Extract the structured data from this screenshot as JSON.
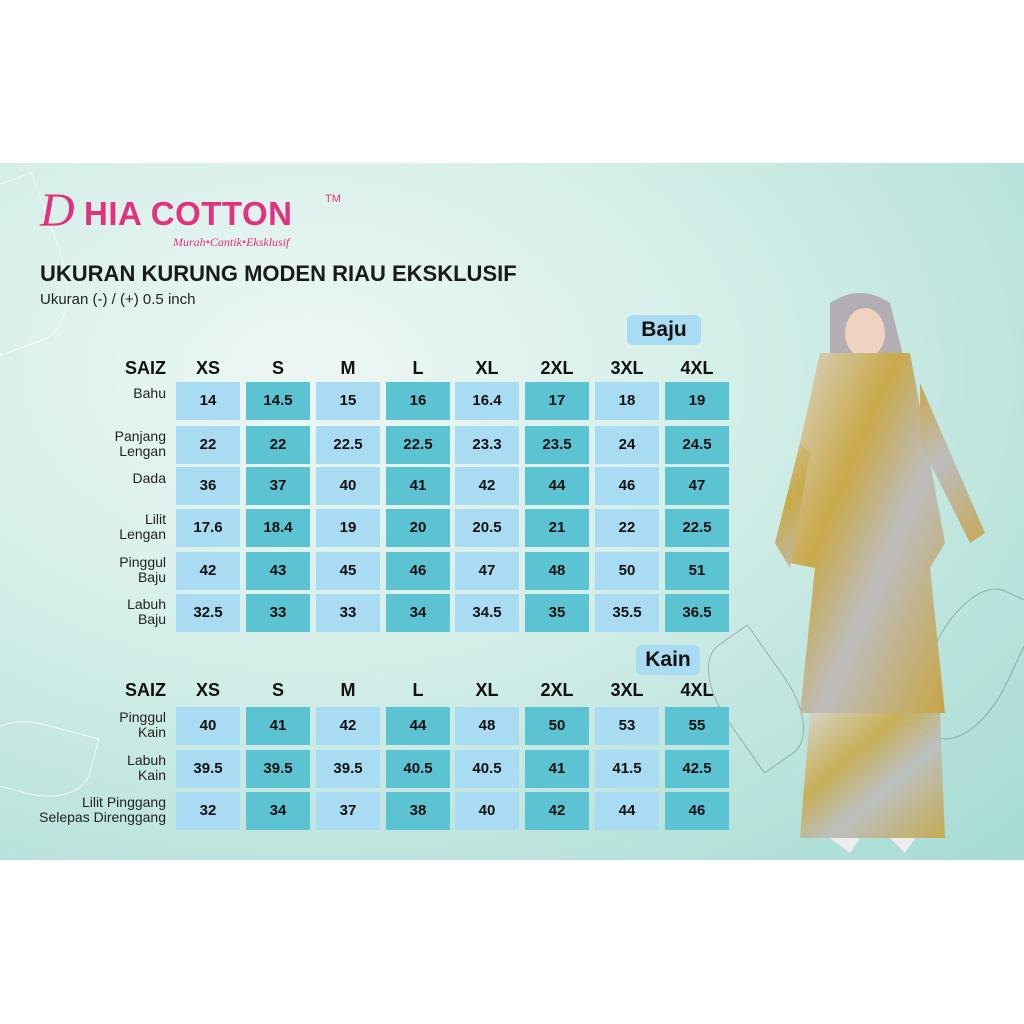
{
  "brand": {
    "name": "HIA COTTON",
    "initial": "D",
    "trademark": "TM",
    "tagline": "Murah•Cantik•Eksklusif",
    "color": "#e2317d"
  },
  "title": "UKURAN KURUNG MODEN RIAU EKSKLUSIF",
  "subtitle": "Ukuran (-) / (+) 0.5 inch",
  "colors": {
    "light_cell": "#a9dcf2",
    "dark_cell": "#5cc3d3"
  },
  "baju": {
    "badge": "Baju",
    "size_label": "SAIZ",
    "sizes": [
      "XS",
      "S",
      "M",
      "L",
      "XL",
      "2XL",
      "3XL",
      "4XL"
    ],
    "rows": [
      {
        "label": [
          "Bahu"
        ],
        "values": [
          "14",
          "14.5",
          "15",
          "16",
          "16.4",
          "17",
          "18",
          "19"
        ]
      },
      {
        "label": [
          "Panjang",
          "Lengan"
        ],
        "values": [
          "22",
          "22",
          "22.5",
          "22.5",
          "23.3",
          "23.5",
          "24",
          "24.5"
        ]
      },
      {
        "label": [
          "Dada"
        ],
        "values": [
          "36",
          "37",
          "40",
          "41",
          "42",
          "44",
          "46",
          "47"
        ]
      },
      {
        "label": [
          "Lilit",
          "Lengan"
        ],
        "values": [
          "17.6",
          "18.4",
          "19",
          "20",
          "20.5",
          "21",
          "22",
          "22.5"
        ]
      },
      {
        "label": [
          "Pinggul",
          "Baju"
        ],
        "values": [
          "42",
          "43",
          "45",
          "46",
          "47",
          "48",
          "50",
          "51"
        ]
      },
      {
        "label": [
          "Labuh",
          "Baju"
        ],
        "values": [
          "32.5",
          "33",
          "33",
          "34",
          "34.5",
          "35",
          "35.5",
          "36.5"
        ]
      }
    ]
  },
  "kain": {
    "badge": "Kain",
    "size_label": "SAIZ",
    "sizes": [
      "XS",
      "S",
      "M",
      "L",
      "XL",
      "2XL",
      "3XL",
      "4XL"
    ],
    "rows": [
      {
        "label": [
          "Pinggul",
          "Kain"
        ],
        "values": [
          "40",
          "41",
          "42",
          "44",
          "48",
          "50",
          "53",
          "55"
        ]
      },
      {
        "label": [
          "Labuh",
          "Kain"
        ],
        "values": [
          "39.5",
          "39.5",
          "39.5",
          "40.5",
          "40.5",
          "41",
          "41.5",
          "42.5"
        ]
      },
      {
        "label": [
          "Lilit Pinggang",
          "Selepas Direnggang"
        ],
        "values": [
          "32",
          "34",
          "37",
          "38",
          "40",
          "42",
          "44",
          "46"
        ]
      }
    ]
  }
}
